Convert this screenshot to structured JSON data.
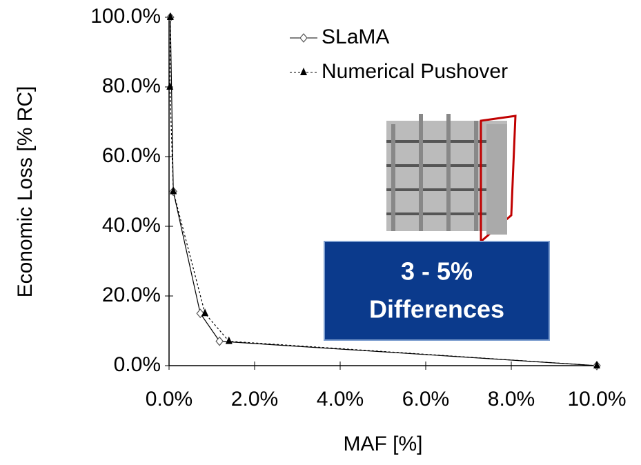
{
  "chart_data": {
    "type": "line",
    "x_label": "MAF [%]",
    "y_label": "Economic Loss [% RC]",
    "series": [
      {
        "name": "SLaMA",
        "color": "#000000",
        "marker": "diamond",
        "dash": "solid",
        "x": [
          0.03,
          0.1,
          0.73,
          1.18,
          10
        ],
        "values": [
          100,
          50,
          15,
          7,
          0
        ]
      },
      {
        "name": "Numerical Pushover",
        "color": "#000000",
        "marker": "triangle",
        "dash": "dotted",
        "x": [
          0.03,
          0.02,
          0.1,
          0.84,
          1.4,
          10
        ],
        "values": [
          100,
          80,
          50,
          15,
          7,
          0
        ]
      }
    ],
    "xlim": [
      0,
      10
    ],
    "ylim": [
      0,
      100
    ],
    "xticks": [
      {
        "value": 0,
        "label": "0.0%"
      },
      {
        "value": 2,
        "label": "2.0%"
      },
      {
        "value": 4,
        "label": "4.0%"
      },
      {
        "value": 6,
        "label": "6.0%"
      },
      {
        "value": 8,
        "label": "8.0%"
      },
      {
        "value": 10,
        "label": "10.0%"
      }
    ],
    "yticks": [
      {
        "value": 0,
        "label": "0.0%"
      },
      {
        "value": 20,
        "label": "20.0%"
      },
      {
        "value": 40,
        "label": "40.0%"
      },
      {
        "value": 60,
        "label": "60.0%"
      },
      {
        "value": 80,
        "label": "80.0%"
      },
      {
        "value": 100,
        "label": "100.0%"
      }
    ],
    "annotation": {
      "lines": [
        "3 - 5%",
        "Differences"
      ],
      "color": "#0b3a8c"
    }
  }
}
